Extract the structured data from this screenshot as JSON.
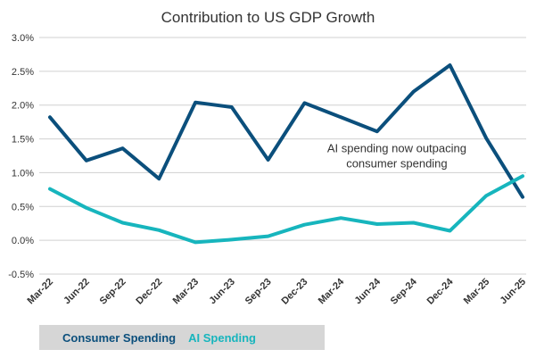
{
  "chart_data": {
    "type": "line",
    "title": "Contribution to US GDP Growth",
    "x": [
      "Mar-22",
      "Jun-22",
      "Sep-22",
      "Dec-22",
      "Mar-23",
      "Jun-23",
      "Sep-23",
      "Dec-23",
      "Mar-24",
      "Jun-24",
      "Sep-24",
      "Dec-24",
      "Mar-25",
      "Jun-25"
    ],
    "series": [
      {
        "name": "Consumer Spending",
        "color": "#0b4f7c",
        "values": [
          1.82,
          1.18,
          1.36,
          0.91,
          2.04,
          1.97,
          1.19,
          2.03,
          1.82,
          1.61,
          2.2,
          2.59,
          1.51,
          0.64
        ]
      },
      {
        "name": "AI Spending",
        "color": "#17b5bd",
        "values": [
          0.76,
          0.48,
          0.26,
          0.15,
          -0.03,
          0.01,
          0.06,
          0.23,
          0.33,
          0.24,
          0.26,
          0.14,
          0.66,
          0.95
        ]
      }
    ],
    "ylim": [
      -0.5,
      3.0
    ],
    "yticks": [
      "3.0%",
      "2.5%",
      "2.0%",
      "1.5%",
      "1.0%",
      "0.5%",
      "0.0%",
      "-0.5%"
    ],
    "ytick_values": [
      3.0,
      2.5,
      2.0,
      1.5,
      1.0,
      0.5,
      0.0,
      -0.5
    ],
    "grid": true,
    "legend_position": "bottom-left",
    "annotation": [
      "AI spending now outpacing",
      "consumer spending"
    ],
    "annotation_pos": {
      "x": "Jun-24",
      "y": 1.3
    }
  }
}
